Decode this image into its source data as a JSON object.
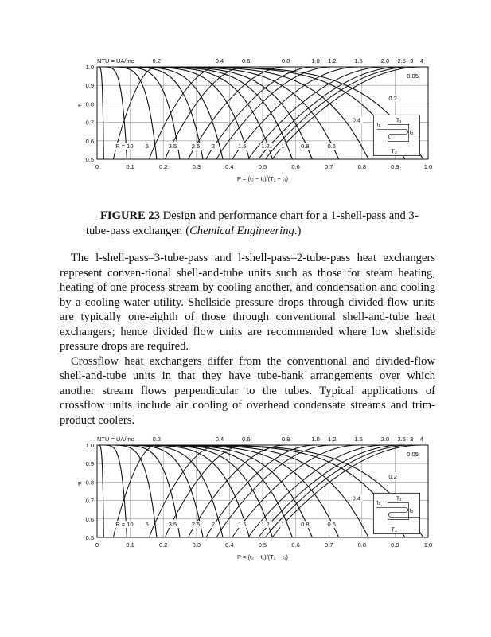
{
  "figures": [
    {
      "ntu_title": "NTU = UA/mc",
      "y_label": "F",
      "x_label": "P = (t₂ − t₁)/(T₁ − t₁)",
      "x_ticks": [
        "0",
        "0.1",
        "0.2",
        "0.3",
        "0.4",
        "0.5",
        "0.6",
        "0.7",
        "0.8",
        "0.9",
        "1.0"
      ],
      "y_ticks": [
        "1.0",
        "0.9",
        "0.8",
        "0.7",
        "0.6",
        "0.5"
      ],
      "ntu_labels": [
        {
          "label": "0.2",
          "p": 0.18
        },
        {
          "label": "0.4",
          "p": 0.37
        },
        {
          "label": "0.6",
          "p": 0.45
        },
        {
          "label": "0.8",
          "p": 0.57
        },
        {
          "label": "1.0",
          "p": 0.66
        },
        {
          "label": "1.2",
          "p": 0.71
        },
        {
          "label": "1.5",
          "p": 0.79
        },
        {
          "label": "2.0",
          "p": 0.87
        },
        {
          "label": "2.5",
          "p": 0.92
        },
        {
          "label": "3",
          "p": 0.95
        },
        {
          "label": "4",
          "p": 0.98
        }
      ],
      "r_curves": [
        {
          "label": "",
          "p_end": 0.02
        },
        {
          "label": "R = 10",
          "p_end": 0.09
        },
        {
          "label": "5",
          "p_end": 0.18
        },
        {
          "label": "3.5",
          "p_end": 0.25
        },
        {
          "label": "2.5",
          "p_end": 0.32
        },
        {
          "label": "2",
          "p_end": 0.38
        },
        {
          "label": "1.5",
          "p_end": 0.46
        },
        {
          "label": "1.2",
          "p_end": 0.53
        },
        {
          "label": "1",
          "p_end": 0.59
        },
        {
          "label": "0.8",
          "p_end": 0.65
        },
        {
          "label": "0.6",
          "p_end": 0.73
        },
        {
          "label": "0.4",
          "p_end": 0.82
        },
        {
          "label": "0.2",
          "p_end": 0.93
        },
        {
          "label": "0.05",
          "p_end": 0.985
        }
      ],
      "inset": {
        "t1": "t₁",
        "t2": "t₂",
        "T1": "T₁",
        "T2": "T₂"
      }
    }
  ],
  "caption": {
    "label": "FIGURE 23",
    "text": " Design and performance chart for a 1-shell-pass and 3-tube-pass exchanger. (",
    "source": "Chemical Engineering",
    "end": ".)"
  },
  "paragraphs": [
    "The l-shell-pass–3-tube-pass and l-shell-pass–2-tube-pass heat exchangers represent conven-tional shell-and-tube units such as those for steam heating, heating of one process stream by cooling another, and condensation and cooling by a cooling-water utility. Shellside pressure drops through divided-flow units are typically one-eighth of those through conventional shell-and-tube heat exchangers; hence divided flow units are recommended where low shellside pressure drops are required.",
    "Crossflow heat exchangers differ from the conventional and divided-flow shell-and-tube units in that they have tube-bank arrangements over which another stream flows perpendicular to the tubes. Typical applications of crossflow units include air cooling of overhead condensate streams and trim-product coolers."
  ]
}
